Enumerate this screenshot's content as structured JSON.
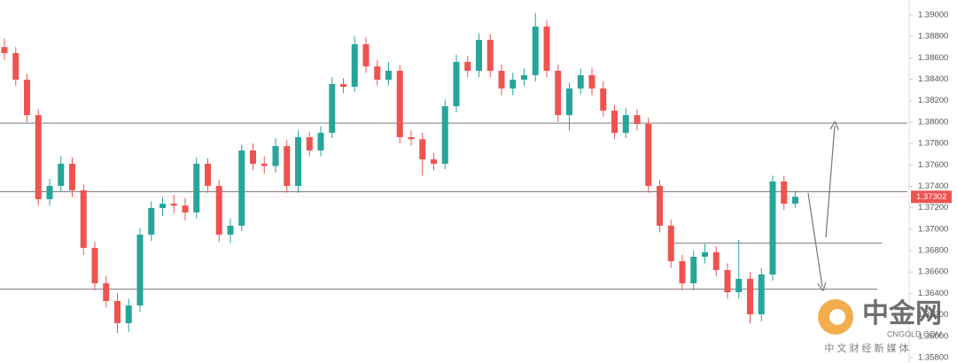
{
  "chart_data": {
    "type": "candlestick",
    "open": [
      1.387,
      1.38644,
      1.38396,
      1.38065,
      1.3728,
      1.37404,
      1.37611,
      1.37363,
      1.36825,
      1.36494,
      1.36329,
      1.36122,
      1.36287,
      1.36949,
      1.37197,
      1.37238,
      1.3722,
      1.37156,
      1.37611,
      1.37404,
      1.36949,
      1.37032,
      1.37735,
      1.37611,
      1.3759,
      1.37776,
      1.37404,
      1.37859,
      1.37735,
      1.379,
      1.38355,
      1.3833,
      1.38727,
      1.3852,
      1.38396,
      1.38479,
      1.37859,
      1.3784,
      1.37652,
      1.37611,
      1.38148,
      1.38562,
      1.38479,
      1.38768,
      1.38479,
      1.38314,
      1.38396,
      1.38438,
      1.38892,
      1.38479,
      1.38065,
      1.38314,
      1.38438,
      1.38314,
      1.38107,
      1.379,
      1.38065,
      1.37983,
      1.37404,
      1.37032,
      1.36701,
      1.36494,
      1.36742,
      1.36784,
      1.36618,
      1.36411,
      1.36536,
      1.36205,
      1.36577,
      1.37445,
      1.37238
    ],
    "high": [
      1.3878,
      1.387,
      1.3845,
      1.3812,
      1.3747,
      1.3768,
      1.3767,
      1.3742,
      1.3688,
      1.3656,
      1.364,
      1.3635,
      1.3701,
      1.3726,
      1.373,
      1.3732,
      1.3729,
      1.3767,
      1.3766,
      1.3746,
      1.371,
      1.3779,
      1.378,
      1.3768,
      1.3785,
      1.3783,
      1.3792,
      1.3791,
      1.3796,
      1.3842,
      1.3841,
      1.388,
      1.3879,
      1.3858,
      1.3856,
      1.3853,
      1.3792,
      1.379,
      1.3771,
      1.3821,
      1.3863,
      1.3862,
      1.3883,
      1.3882,
      1.3854,
      1.3846,
      1.385,
      1.3902,
      1.3895,
      1.3854,
      1.3837,
      1.385,
      1.3851,
      1.3838,
      1.3816,
      1.3813,
      1.3812,
      1.3804,
      1.3746,
      1.3709,
      1.3676,
      1.368,
      1.3686,
      1.3684,
      1.3668,
      1.369,
      1.366,
      1.3664,
      1.375,
      1.375,
      1.3736
    ],
    "low": [
      1.3858,
      1.3834,
      1.38,
      1.3722,
      1.3722,
      1.3735,
      1.373,
      1.3676,
      1.3643,
      1.3627,
      1.3603,
      1.3604,
      1.3623,
      1.3689,
      1.3712,
      1.3715,
      1.3708,
      1.371,
      1.3734,
      1.3688,
      1.3687,
      1.3698,
      1.3755,
      1.3752,
      1.3753,
      1.3734,
      1.3734,
      1.3768,
      1.3768,
      1.3785,
      1.3827,
      1.3828,
      1.3846,
      1.3834,
      1.3834,
      1.378,
      1.3778,
      1.375,
      1.3755,
      1.3756,
      1.3809,
      1.3842,
      1.3842,
      1.3842,
      1.3825,
      1.3825,
      1.3834,
      1.3838,
      1.3842,
      1.38,
      1.3792,
      1.3826,
      1.3825,
      1.3805,
      1.3784,
      1.3785,
      1.3792,
      1.3734,
      1.3697,
      1.3664,
      1.3643,
      1.3643,
      1.3668,
      1.3656,
      1.3635,
      1.3635,
      1.3612,
      1.3614,
      1.3652,
      1.3718,
      1.372
    ],
    "close": [
      1.38644,
      1.38396,
      1.38065,
      1.3728,
      1.37404,
      1.37611,
      1.37363,
      1.36825,
      1.36494,
      1.36329,
      1.36122,
      1.36287,
      1.36949,
      1.37197,
      1.37238,
      1.3722,
      1.37156,
      1.37611,
      1.37404,
      1.36949,
      1.37032,
      1.37735,
      1.37611,
      1.3759,
      1.37776,
      1.37404,
      1.37859,
      1.37735,
      1.379,
      1.38355,
      1.3833,
      1.38727,
      1.3852,
      1.38396,
      1.38479,
      1.37859,
      1.3784,
      1.37652,
      1.37611,
      1.38148,
      1.38562,
      1.38479,
      1.38768,
      1.38479,
      1.38314,
      1.38396,
      1.38438,
      1.38892,
      1.38479,
      1.38065,
      1.38314,
      1.38438,
      1.38314,
      1.38107,
      1.379,
      1.38065,
      1.37983,
      1.37404,
      1.37032,
      1.36701,
      1.36494,
      1.36742,
      1.36784,
      1.36618,
      1.36411,
      1.36536,
      1.36205,
      1.36577,
      1.37445,
      1.37238,
      1.37302
    ],
    "up_color": "#26a69a",
    "down_color": "#ef5350",
    "levels": [
      1.3799,
      1.3735,
      1.3644,
      1.3687
    ],
    "ylim": [
      1.3575,
      1.3914
    ],
    "yticks": [
      {
        "value": 1.358,
        "label": "1.35800"
      },
      {
        "value": 1.36,
        "label": "1.36000"
      },
      {
        "value": 1.362,
        "label": "1.36200"
      },
      {
        "value": 1.364,
        "label": "1.36400"
      },
      {
        "value": 1.366,
        "label": "1.36600"
      },
      {
        "value": 1.368,
        "label": "1.36800"
      },
      {
        "value": 1.37,
        "label": "1.37000"
      },
      {
        "value": 1.372,
        "label": "1.37200"
      },
      {
        "value": 1.374,
        "label": "1.37400"
      },
      {
        "value": 1.376,
        "label": "1.37600"
      },
      {
        "value": 1.378,
        "label": "1.37800"
      },
      {
        "value": 1.38,
        "label": "1.38000"
      },
      {
        "value": 1.382,
        "label": "1.38200"
      },
      {
        "value": 1.384,
        "label": "1.38400"
      },
      {
        "value": 1.386,
        "label": "1.38600"
      },
      {
        "value": 1.388,
        "label": "1.38800"
      },
      {
        "value": 1.39,
        "label": "1.39000"
      }
    ],
    "watermark": {
      "brand": "中金网",
      "site": "CNGOLD.COM",
      "tagline": "中 文 财 经 新 媒 体"
    }
  }
}
